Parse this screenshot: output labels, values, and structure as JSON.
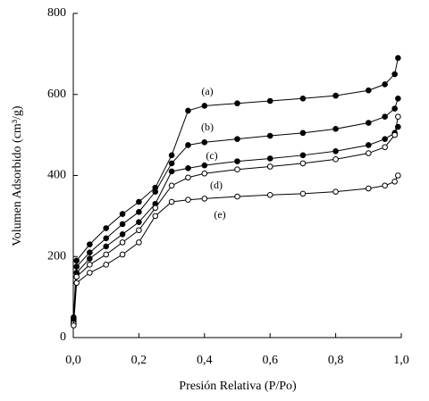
{
  "chart_data": {
    "type": "line",
    "xlabel": "Presión Relativa (P/Po)",
    "ylabel": "Volumen Adsorbido (cm³/g)",
    "x": [
      0.001,
      0.01,
      0.05,
      0.1,
      0.15,
      0.2,
      0.25,
      0.3,
      0.35,
      0.4,
      0.5,
      0.6,
      0.7,
      0.8,
      0.9,
      0.95,
      0.98,
      0.99
    ],
    "series": [
      {
        "name": "(a)",
        "color": "#000000",
        "marker": "filled",
        "values": [
          50,
          190,
          230,
          270,
          305,
          335,
          370,
          450,
          560,
          572,
          578,
          584,
          590,
          597,
          610,
          625,
          650,
          690
        ]
      },
      {
        "name": "(b)",
        "color": "#000000",
        "marker": "filled",
        "values": [
          45,
          175,
          210,
          245,
          280,
          310,
          360,
          430,
          475,
          482,
          490,
          498,
          505,
          515,
          530,
          545,
          565,
          590
        ]
      },
      {
        "name": "(c)",
        "color": "#000000",
        "marker": "filled",
        "values": [
          40,
          160,
          195,
          225,
          255,
          285,
          330,
          410,
          418,
          425,
          435,
          442,
          450,
          460,
          475,
          490,
          505,
          520
        ]
      },
      {
        "name": "(d)",
        "color": "#000000",
        "marker": "open",
        "values": [
          35,
          150,
          180,
          205,
          235,
          265,
          320,
          375,
          395,
          405,
          415,
          422,
          430,
          440,
          455,
          470,
          500,
          545
        ]
      },
      {
        "name": "(e)",
        "color": "#000000",
        "marker": "open",
        "values": [
          30,
          135,
          160,
          180,
          205,
          235,
          300,
          335,
          340,
          343,
          348,
          352,
          355,
          360,
          368,
          375,
          385,
          400
        ]
      }
    ],
    "xlim": [
      0,
      1
    ],
    "xticks": [
      {
        "value": 0,
        "label": "0,0"
      },
      {
        "value": 0.2,
        "label": "0,2"
      },
      {
        "value": 0.4,
        "label": "0,4"
      },
      {
        "value": 0.6,
        "label": "0,6"
      },
      {
        "value": 0.8,
        "label": "0,8"
      },
      {
        "value": 1,
        "label": "1,0"
      }
    ],
    "ylim": [
      0,
      800
    ],
    "yticks": [
      0,
      200,
      400,
      600,
      800
    ],
    "grid": false
  }
}
